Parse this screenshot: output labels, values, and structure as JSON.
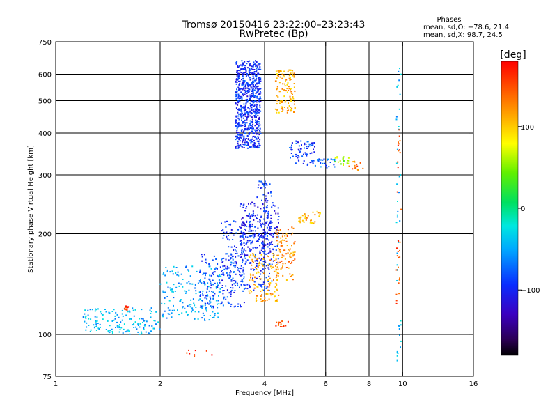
{
  "chart_data": {
    "type": "scatter",
    "title": "Tromsø 20150416 23:22:00–23:23:43",
    "subtitle": "RwPretec (Bp)",
    "xlabel": "Frequency [MHz]",
    "ylabel": "Stationary phase Virtual Height [km]",
    "x_scale": "log",
    "y_scale": "log",
    "xlim": [
      1,
      16
    ],
    "ylim": [
      75,
      750
    ],
    "x_ticks": [
      1,
      2,
      4,
      6,
      8,
      10,
      16
    ],
    "y_ticks": [
      75,
      100,
      200,
      300,
      400,
      500,
      600,
      750
    ],
    "x_gridlines": [
      2,
      4,
      6,
      8,
      10
    ],
    "y_gridlines": [
      100,
      200,
      300,
      400,
      500,
      600
    ],
    "grid": true,
    "colorbar": {
      "label": "[deg]",
      "range": [
        -180,
        180
      ],
      "ticks": [
        -100,
        0,
        100
      ],
      "tick_labels": [
        "−100",
        "0",
        "100"
      ]
    },
    "phases_box": {
      "title": "Phases",
      "line1": "mean, sd,O:  −78.6, 21.4",
      "line2": "mean, sd,X:  98.7, 24.5"
    },
    "phase_means": {
      "O": {
        "mean": -78.6,
        "sd": 21.4
      },
      "X": {
        "mean": 98.7,
        "sd": 24.5
      }
    },
    "clusters": [
      {
        "mode": "O",
        "x": [
          3.3,
          3.9
        ],
        "y": [
          360,
          660
        ],
        "phase": -95,
        "n": 700
      },
      {
        "mode": "X",
        "x": [
          4.3,
          4.9
        ],
        "y": [
          460,
          620
        ],
        "phase": 110,
        "n": 120
      },
      {
        "mode": "O",
        "x": [
          4.7,
          5.6
        ],
        "y": [
          320,
          380
        ],
        "phase": -90,
        "n": 70
      },
      {
        "mode": "O",
        "x": [
          5.6,
          6.4
        ],
        "y": [
          315,
          335
        ],
        "phase": -70,
        "n": 25
      },
      {
        "mode": "X",
        "x": [
          6.3,
          7.0
        ],
        "y": [
          320,
          340
        ],
        "phase": 55,
        "n": 20
      },
      {
        "mode": "X",
        "x": [
          7.0,
          7.7
        ],
        "y": [
          310,
          330
        ],
        "phase": 140,
        "n": 15
      },
      {
        "mode": "O",
        "x": [
          1.2,
          2.0
        ],
        "y": [
          100,
          120
        ],
        "phase": -45,
        "n": 150
      },
      {
        "mode": "O",
        "x": [
          2.0,
          3.0
        ],
        "y": [
          110,
          160
        ],
        "phase": -50,
        "n": 180
      },
      {
        "mode": "O",
        "x": [
          2.6,
          3.5
        ],
        "y": [
          120,
          175
        ],
        "phase": -85,
        "n": 160
      },
      {
        "mode": "O",
        "x": [
          3.0,
          4.2
        ],
        "y": [
          135,
          220
        ],
        "phase": -95,
        "n": 220
      },
      {
        "mode": "O",
        "x": [
          3.4,
          4.4
        ],
        "y": [
          160,
          250
        ],
        "phase": -100,
        "n": 200
      },
      {
        "mode": "O",
        "x": [
          3.8,
          4.2
        ],
        "y": [
          180,
          290
        ],
        "phase": -100,
        "n": 90
      },
      {
        "mode": "X",
        "x": [
          3.6,
          4.4
        ],
        "y": [
          125,
          175
        ],
        "phase": 115,
        "n": 120
      },
      {
        "mode": "X",
        "x": [
          4.3,
          4.9
        ],
        "y": [
          145,
          210
        ],
        "phase": 125,
        "n": 90
      },
      {
        "mode": "X",
        "x": [
          5.0,
          5.8
        ],
        "y": [
          215,
          240
        ],
        "phase": 110,
        "n": 30
      },
      {
        "mode": "X",
        "x": [
          4.3,
          4.7
        ],
        "y": [
          105,
          110
        ],
        "phase": 150,
        "n": 15
      },
      {
        "mode": "X",
        "x": [
          1.58,
          1.62
        ],
        "y": [
          118,
          122
        ],
        "phase": 165,
        "n": 12
      },
      {
        "mode": "X",
        "x": [
          2.3,
          2.9
        ],
        "y": [
          86,
          90
        ],
        "phase": 165,
        "n": 8
      },
      {
        "mode": "O",
        "x": [
          9.6,
          9.9
        ],
        "y": [
          78,
          640
        ],
        "phase": -40,
        "n": 45
      },
      {
        "mode": "X",
        "x": [
          9.6,
          9.9
        ],
        "y": [
          120,
          470
        ],
        "phase": 150,
        "n": 30
      }
    ]
  }
}
